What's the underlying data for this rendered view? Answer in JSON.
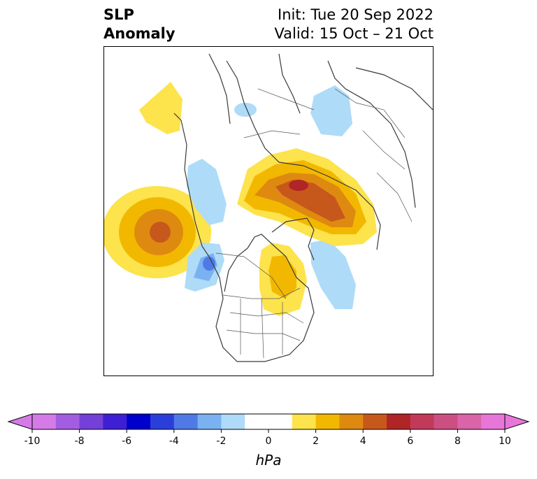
{
  "title": {
    "left_line1": "SLP",
    "left_line2": "Anomaly",
    "right_line1": "Init: Tue 20 Sep 2022",
    "right_line2": "Valid: 15 Oct – 21 Oct"
  },
  "colorbar": {
    "unit": "hPa",
    "levels": [
      -10,
      -9,
      -8,
      -7,
      -6,
      -5,
      -4,
      -3,
      -2,
      -1,
      1,
      2,
      3,
      4,
      5,
      6,
      7,
      8,
      9,
      10
    ],
    "tick_labels": [
      "-10",
      "-8",
      "-6",
      "-4",
      "-2",
      "0",
      "2",
      "4",
      "6",
      "8",
      "10"
    ],
    "colors": [
      "#d57be8",
      "#a35de0",
      "#7340d8",
      "#3e1fd3",
      "#0000cc",
      "#2a3fd9",
      "#4f7ae6",
      "#7ab1f0",
      "#aedbf8",
      "#ffffff",
      "#fde34c",
      "#f2b800",
      "#de8a10",
      "#c7581c",
      "#b02525",
      "#c23a5a",
      "#cc4f82",
      "#d964a8",
      "#e876d9"
    ],
    "extend": "both"
  },
  "map": {
    "projection": "north-polar-stereographic",
    "variable": "sea-level-pressure-anomaly"
  }
}
